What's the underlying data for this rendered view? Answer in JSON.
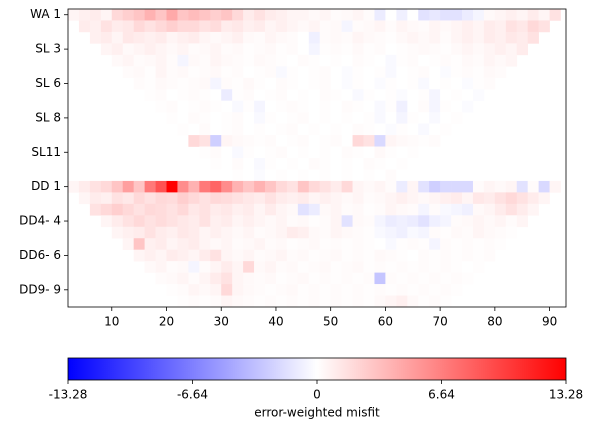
{
  "chart_data": {
    "type": "heatmap",
    "x": [
      3,
      5,
      7,
      9,
      11,
      13,
      15,
      17,
      19,
      21,
      23,
      25,
      27,
      29,
      31,
      33,
      35,
      37,
      39,
      41,
      43,
      45,
      47,
      49,
      51,
      53,
      55,
      57,
      59,
      61,
      63,
      65,
      67,
      69,
      71,
      73,
      75,
      77,
      79,
      81,
      83,
      85,
      87,
      89,
      91
    ],
    "rows": [
      "WA 1",
      null,
      null,
      "SL 3",
      null,
      null,
      "SL 6",
      null,
      null,
      "SL 8",
      null,
      null,
      "SL11",
      null,
      null,
      "DD 1",
      null,
      null,
      "DD4- 4",
      null,
      null,
      "DD6- 6",
      null,
      null,
      "DD9- 9",
      null
    ],
    "xlim": [
      2,
      93
    ],
    "xticks": [
      10,
      20,
      30,
      40,
      50,
      60,
      70,
      80,
      90
    ],
    "colormap": [
      "#0000ff",
      "#ffffff",
      "#ff0000"
    ],
    "colorbar": {
      "label": "error-weighted misfit",
      "lim": [
        -13.28,
        13.28
      ],
      "ticks": [
        -13.28,
        -6.64,
        0,
        6.64,
        13.28
      ]
    },
    "values": [
      [
        0.5,
        0.8,
        1,
        0.5,
        2,
        2.5,
        3,
        4,
        3,
        4.5,
        3,
        3.5,
        3,
        2.5,
        3,
        2,
        1,
        1.5,
        1,
        0.8,
        0.5,
        0.5,
        0.3,
        0.5,
        0.2,
        0.3,
        0.5,
        0.2,
        -1,
        0,
        -0.8,
        0,
        -1.5,
        -1.2,
        -1.5,
        -1.5,
        -1,
        -0.5,
        0.3,
        0.5,
        0.8,
        0.5,
        1,
        0.5,
        1.5
      ],
      [
        null,
        1,
        0.8,
        1.5,
        1,
        1.2,
        2,
        1.5,
        2,
        2.5,
        2,
        2,
        1.5,
        1.8,
        1,
        1.2,
        0.8,
        1,
        0.5,
        0.8,
        0.5,
        0.3,
        0.5,
        0.2,
        0.3,
        -0.5,
        0.2,
        0.3,
        0.5,
        0.2,
        0.5,
        0.3,
        0.2,
        0.5,
        0.3,
        0.5,
        0.8,
        0.5,
        1,
        0.8,
        1.5,
        1.2,
        2,
        1.5,
        null
      ],
      [
        null,
        null,
        0.8,
        1,
        0.5,
        1.2,
        1,
        0.8,
        1,
        0.5,
        0.8,
        1,
        0.5,
        0.3,
        0.5,
        0.8,
        0.3,
        0.2,
        0.5,
        0.3,
        0.2,
        0,
        -0.8,
        0.2,
        0.3,
        0.2,
        0.5,
        0.3,
        0.2,
        0.1,
        0.3,
        0.5,
        0.3,
        0.5,
        0.2,
        0.5,
        0.8,
        0.5,
        1,
        0.8,
        1.2,
        1,
        1.5,
        null,
        null
      ],
      [
        null,
        null,
        null,
        0.5,
        0.8,
        0.3,
        0.5,
        0.8,
        0.5,
        0.3,
        0.5,
        0.2,
        0.3,
        0.5,
        0.2,
        0.3,
        0.1,
        0.2,
        0.3,
        0.1,
        0.2,
        0,
        -0.5,
        0.1,
        0.2,
        0.1,
        0.3,
        0.1,
        0.2,
        0,
        0.1,
        0.2,
        0.3,
        0.2,
        0.1,
        0.3,
        0.5,
        0.3,
        0.5,
        0.8,
        0.5,
        1,
        null,
        null,
        null
      ],
      [
        null,
        null,
        null,
        null,
        0.3,
        0.5,
        0.2,
        0.3,
        0.5,
        0.2,
        -0.5,
        0.3,
        0.2,
        0.5,
        0.3,
        0.2,
        0.1,
        0.3,
        0.2,
        0.1,
        0,
        0.2,
        0.1,
        0,
        0.1,
        0,
        0.2,
        0.1,
        0,
        -0.3,
        0.1,
        0.2,
        0,
        0.1,
        0.2,
        0.1,
        0.3,
        0.2,
        0.5,
        0.3,
        0.5,
        null,
        null,
        null,
        null
      ],
      [
        null,
        null,
        null,
        null,
        null,
        0.2,
        0.3,
        0.1,
        0.5,
        0.2,
        0.3,
        0.1,
        0.2,
        0.3,
        0.1,
        0.2,
        0,
        0.1,
        0.2,
        -0.3,
        0.1,
        0,
        0.1,
        0.2,
        0,
        -0.2,
        0.1,
        0,
        0.1,
        -0.3,
        0,
        0.1,
        0.2,
        0,
        -0.2,
        0.1,
        0.2,
        0.1,
        0.3,
        0.2,
        null,
        null,
        null,
        null,
        null
      ],
      [
        null,
        null,
        null,
        null,
        null,
        null,
        0.2,
        0.1,
        0.3,
        0.2,
        0.1,
        0.2,
        0.3,
        -0.5,
        0.2,
        0.1,
        0.3,
        0.1,
        0,
        0.2,
        0.1,
        0,
        0.1,
        0.2,
        0,
        -0.2,
        0.1,
        0,
        -0.2,
        0.1,
        0,
        0.1,
        -0.3,
        0,
        0.1,
        0,
        -0.2,
        0.1,
        0.2,
        null,
        null,
        null,
        null,
        null,
        null
      ],
      [
        null,
        null,
        null,
        null,
        null,
        null,
        null,
        0.1,
        0.2,
        0,
        0.1,
        0.2,
        0.1,
        0,
        -1,
        0.1,
        0.2,
        0,
        0.1,
        0.2,
        0,
        0.1,
        0,
        0.2,
        0.1,
        0,
        -0.3,
        0.1,
        0,
        0.1,
        -0.2,
        0,
        0.1,
        -0.5,
        0,
        0.1,
        0,
        -0.2,
        null,
        null,
        null,
        null,
        null,
        null,
        null
      ],
      [
        null,
        null,
        null,
        null,
        null,
        null,
        null,
        null,
        0.1,
        0.2,
        0,
        0.1,
        0.2,
        0.1,
        0,
        -0.3,
        0.1,
        -0.5,
        0,
        0.1,
        0.2,
        0.1,
        0,
        0.1,
        0,
        0.2,
        0.1,
        0,
        -0.3,
        0.1,
        -0.8,
        0,
        0.2,
        -0.5,
        0.1,
        0,
        -0.2,
        null,
        null,
        null,
        null,
        null,
        null,
        null,
        null
      ],
      [
        null,
        null,
        null,
        null,
        null,
        null,
        null,
        null,
        null,
        0.1,
        0,
        0.2,
        0.1,
        0,
        0.1,
        0.2,
        0,
        -0.3,
        0.1,
        0,
        0.1,
        0.2,
        0,
        0.1,
        0,
        0.1,
        0,
        0.1,
        -0.3,
        0,
        -0.5,
        0.1,
        0,
        -0.3,
        0,
        0.1,
        null,
        null,
        null,
        null,
        null,
        null,
        null,
        null,
        null
      ],
      [
        null,
        null,
        null,
        null,
        null,
        null,
        null,
        null,
        null,
        null,
        0.1,
        0,
        0.2,
        0,
        0.1,
        0.2,
        0,
        0.1,
        0,
        0.1,
        0.2,
        0,
        0.1,
        0,
        0.1,
        0,
        0.2,
        0.1,
        0,
        -0.2,
        0.1,
        0,
        -0.3,
        0,
        0.1,
        null,
        null,
        null,
        null,
        null,
        null,
        null,
        null,
        null,
        null
      ],
      [
        null,
        null,
        null,
        null,
        null,
        null,
        null,
        null,
        null,
        null,
        null,
        2,
        1.5,
        -2.5,
        0.5,
        0.3,
        0.2,
        0.1,
        0.2,
        0,
        0.1,
        0.2,
        0,
        0.1,
        0.2,
        0,
        2,
        1.5,
        -2,
        0.5,
        0.3,
        0.2,
        0.1,
        0.2,
        null,
        null,
        null,
        null,
        null,
        null,
        null,
        null,
        null,
        null,
        null
      ],
      [
        null,
        null,
        null,
        null,
        null,
        null,
        null,
        null,
        null,
        null,
        null,
        null,
        0.1,
        0.2,
        0,
        -0.3,
        0.1,
        0,
        0.1,
        0.2,
        0,
        0.1,
        0,
        0.1,
        0,
        0.2,
        0.1,
        0,
        0.3,
        0.1,
        0,
        0.1,
        0,
        null,
        null,
        null,
        null,
        null,
        null,
        null,
        null,
        null,
        null,
        null,
        null
      ],
      [
        null,
        null,
        null,
        null,
        null,
        null,
        null,
        null,
        null,
        null,
        null,
        null,
        null,
        0.1,
        0,
        0.2,
        0,
        -0.3,
        0.1,
        0,
        0.1,
        0,
        0.2,
        0.1,
        0,
        0.1,
        0,
        0.2,
        0.1,
        0,
        0.1,
        0,
        null,
        null,
        null,
        null,
        null,
        null,
        null,
        null,
        null,
        null,
        null,
        null,
        null
      ],
      [
        null,
        null,
        null,
        null,
        null,
        null,
        null,
        null,
        null,
        null,
        null,
        null,
        null,
        null,
        0,
        0.1,
        0,
        -0.2,
        0,
        0.1,
        0,
        0.1,
        0,
        0.1,
        0,
        0.1,
        0,
        0.1,
        0,
        0.2,
        0,
        null,
        null,
        null,
        null,
        null,
        null,
        null,
        null,
        null,
        null,
        null,
        null,
        null,
        null
      ],
      [
        0.5,
        1,
        1.5,
        2,
        3,
        5,
        3,
        7,
        9,
        13.28,
        6,
        4,
        7,
        8,
        6,
        4,
        3,
        4,
        3,
        2,
        1.5,
        3,
        2,
        1.5,
        1,
        2,
        0.5,
        0.3,
        0.5,
        0.2,
        -1,
        0.5,
        -1.5,
        -2.5,
        -2,
        -2,
        -2,
        0.2,
        0.5,
        0.3,
        0.5,
        -1.5,
        0.2,
        -2,
        0.5
      ],
      [
        null,
        0.5,
        1,
        0.8,
        1.5,
        1.2,
        2,
        1.5,
        2,
        1.8,
        2.5,
        2,
        1.5,
        2,
        1.8,
        1.5,
        1.2,
        1,
        1.5,
        1,
        0.8,
        1,
        0.5,
        0.8,
        0.5,
        0.3,
        0.5,
        0.2,
        0.3,
        0.5,
        0.8,
        0.5,
        0.3,
        0.5,
        0.8,
        1,
        0.5,
        1.2,
        1,
        1.5,
        2,
        1.5,
        1,
        0.5,
        null
      ],
      [
        null,
        null,
        1.5,
        2,
        2.5,
        2,
        1.5,
        2,
        1.8,
        1.5,
        2,
        1.2,
        1.5,
        1,
        1.2,
        0.8,
        1,
        0.5,
        1,
        0.5,
        0.3,
        -1.5,
        -1,
        0.3,
        0.5,
        0.2,
        0.3,
        0.1,
        0.2,
        0.5,
        0.3,
        0.2,
        -0.5,
        0.2,
        -0.3,
        -0.5,
        -0.8,
        0.3,
        0.5,
        1,
        1.5,
        1,
        0.5,
        null,
        null
      ],
      [
        null,
        null,
        null,
        0.5,
        1,
        1.5,
        2,
        1.5,
        1.8,
        1.5,
        1.2,
        1,
        1.5,
        0.8,
        1,
        0.5,
        0.8,
        0.5,
        0.3,
        0.5,
        0.2,
        0.3,
        0.1,
        0.2,
        0.5,
        -1.5,
        0.3,
        0.2,
        -0.5,
        -1,
        -0.8,
        -1,
        -1.5,
        -0.8,
        -0.5,
        0.2,
        0.3,
        0.5,
        0.3,
        0.5,
        0.2,
        0.5,
        null,
        null,
        null
      ],
      [
        null,
        null,
        null,
        null,
        0.5,
        0.8,
        1,
        1.5,
        1,
        0.8,
        1.2,
        1,
        0.5,
        0.8,
        0.5,
        0.3,
        0.5,
        0.2,
        0.3,
        0.5,
        1,
        0.8,
        0.3,
        0.2,
        0.5,
        0.3,
        0.2,
        0.1,
        -0.3,
        -0.5,
        -0.8,
        -0.3,
        -0.5,
        0.2,
        0.1,
        0.3,
        0.2,
        0.5,
        0.3,
        0.2,
        0.1,
        null,
        null,
        null,
        null
      ],
      [
        null,
        null,
        null,
        null,
        null,
        0.5,
        3,
        0.8,
        1,
        0.5,
        0.8,
        1,
        0.5,
        0.3,
        0.5,
        0.2,
        0.3,
        0.5,
        0.2,
        0.3,
        0.1,
        0.2,
        0.3,
        0.1,
        0.2,
        0.1,
        0.2,
        0.1,
        0,
        -0.3,
        0.1,
        0.2,
        0.1,
        -0.5,
        0.2,
        0.1,
        0.2,
        0.1,
        0.2,
        0.1,
        null,
        null,
        null,
        null,
        null
      ],
      [
        null,
        null,
        null,
        null,
        null,
        null,
        0.5,
        0.8,
        0.5,
        1,
        0.8,
        0.5,
        1,
        1.5,
        0.5,
        0.3,
        0.5,
        0.2,
        0.3,
        0.5,
        0.2,
        0.3,
        0.1,
        0.2,
        0.3,
        0.1,
        0.2,
        0.1,
        0.3,
        0.2,
        0.1,
        0,
        0.2,
        0.1,
        0.2,
        0.1,
        0.2,
        0.1,
        0.2,
        null,
        null,
        null,
        null,
        null,
        null
      ],
      [
        null,
        null,
        null,
        null,
        null,
        null,
        null,
        0.3,
        0.5,
        0.2,
        0.3,
        -0.5,
        0.2,
        0.5,
        1,
        0.5,
        2,
        0.3,
        0.5,
        0.2,
        0.3,
        0.1,
        0.2,
        0.3,
        0.1,
        0.2,
        0.3,
        0.1,
        0.2,
        0.1,
        0.2,
        0.1,
        0.2,
        0.1,
        0.2,
        0.1,
        0,
        0.1,
        null,
        null,
        null,
        null,
        null,
        null,
        null
      ],
      [
        null,
        null,
        null,
        null,
        null,
        null,
        null,
        null,
        0.2,
        0.3,
        0.5,
        0.2,
        0.5,
        1,
        1.5,
        0.5,
        0.3,
        0.2,
        0.3,
        0.1,
        0.2,
        0.3,
        0.1,
        0.2,
        0.1,
        0.2,
        0.1,
        0.2,
        -3,
        0.2,
        0.1,
        0.2,
        0.1,
        0.2,
        0.1,
        0.2,
        0.1,
        null,
        null,
        null,
        null,
        null,
        null,
        null,
        null
      ],
      [
        null,
        null,
        null,
        null,
        null,
        null,
        null,
        null,
        null,
        0.1,
        0.2,
        0.5,
        0.3,
        0.5,
        2,
        0.5,
        0.3,
        0.2,
        0.1,
        0.2,
        0.3,
        0.1,
        0.2,
        0.1,
        0.2,
        0.1,
        0.2,
        0.1,
        0.2,
        0.1,
        0.2,
        0.1,
        0.2,
        0.1,
        0.2,
        0.1,
        null,
        null,
        null,
        null,
        null,
        null,
        null,
        null,
        null
      ],
      [
        null,
        null,
        null,
        null,
        null,
        null,
        null,
        null,
        null,
        null,
        0.1,
        0.2,
        0.1,
        0.2,
        0.5,
        0.3,
        0.2,
        0.1,
        0.2,
        0.1,
        0.2,
        0.1,
        0.2,
        0.1,
        0.2,
        0.1,
        0.2,
        0.1,
        0.3,
        0.5,
        0.8,
        0.3,
        0.1,
        0.2,
        0.1,
        null,
        null,
        null,
        null,
        null,
        null,
        null,
        null,
        null,
        null
      ]
    ]
  }
}
